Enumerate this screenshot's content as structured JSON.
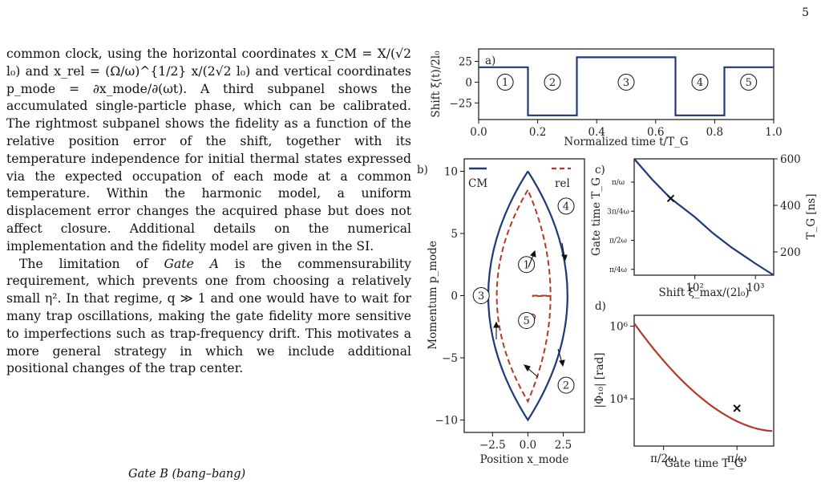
{
  "page_number": "5",
  "body_text": {
    "p1": [
      "common clock, using the horizontal coordinates x_CM = X/(√2 l₀) and x_rel = (Ω/ω)^{1/2} x/(2√2 l₀) and vertical coordinates p_mode = ∂x_mode/∂(ωt). A third subpanel shows the accumulated single-particle phase, which can be calibrated. The rightmost subpanel shows the fidelity as a function of the relative position error of the shift, together with its temperature independence for initial thermal states expressed via the expected occupation of each mode at a common temperature. Within the harmonic model, a uniform displacement error changes the acquired phase but does not affect closure. Additional details on the numerical implementation and the fidelity model are given in the SI."
    ],
    "p2_pre": "The limitation of ",
    "p2_em": "Gate A",
    "p2_post": " is the commensurability requirement, which prevents one from choosing a relatively small η². In that regime, q ≫ 1 and one would have to wait for many trap oscillations, making the gate fidelity more sensitive to imperfections such as trap-frequency drift. This motivates a more general strategy in which we include additional positional changes of the trap center.",
    "section_heading": "Gate B (bang–bang)"
  },
  "figure": {
    "panel_labels": {
      "a": "a)",
      "b": "b)",
      "c": "c)",
      "d": "d)"
    },
    "segment_markers": [
      "1",
      "2",
      "3",
      "4",
      "5"
    ],
    "a": {
      "ylabel": "Shift ξ(t)/2l₀",
      "xlabel": "Normalized time t/T_G",
      "xticks": [
        "0.0",
        "0.2",
        "0.4",
        "0.6",
        "0.8",
        "1.0"
      ],
      "yticks": [
        "25",
        "0",
        "−25"
      ]
    },
    "b": {
      "ylabel": "Momentum p_mode",
      "xlabel": "Position x_mode",
      "xticks": [
        "−2.5",
        "0.0",
        "2.5"
      ],
      "yticks": [
        "10",
        "5",
        "0",
        "−5",
        "−10"
      ],
      "legend": [
        "CM",
        "rel"
      ]
    },
    "c": {
      "ylabel_left": "Gate time T_G",
      "ylabel_right": "T_G [ns]",
      "xlabel": "Shift ξ_max/(2l₀)",
      "xticks": [
        "10²",
        "10³"
      ],
      "yticks_right": [
        "600",
        "400",
        "200"
      ],
      "yticks_left": [
        "π/ω",
        "3π/4ω",
        "π/2ω",
        "π/4ω"
      ]
    },
    "d": {
      "ylabel": "|Φ₁₀| [rad]",
      "xlabel": "Gate time T_G",
      "xticks": [
        "π/2ω",
        "π/ω"
      ],
      "yticks": [
        "10⁶",
        "10⁴"
      ]
    }
  },
  "chart_data": [
    {
      "type": "line",
      "panel": "a",
      "xlabel": "Normalized time t/T_G",
      "ylabel": "Shift ξ(t)/2l₀",
      "xlim": [
        0,
        1
      ],
      "ylim": [
        -45,
        40
      ],
      "series": [
        {
          "x": [
            0,
            0.167,
            0.167,
            0.333,
            0.333,
            0.667,
            0.667,
            0.833,
            0.833,
            1.0
          ],
          "y": [
            18,
            18,
            -40,
            -40,
            30,
            30,
            -40,
            -40,
            18,
            18
          ]
        }
      ]
    },
    {
      "type": "line",
      "panel": "b",
      "xlabel": "Position x_mode",
      "ylabel": "Momentum p_mode",
      "xlim": [
        -4.5,
        4.0
      ],
      "ylim": [
        -11,
        11
      ],
      "series": [
        {
          "name": "CM",
          "x": [
            0,
            -2.8,
            0,
            2.8,
            0
          ],
          "y": [
            10,
            0,
            -10,
            0,
            10
          ]
        },
        {
          "name": "rel",
          "x": [
            0,
            -2.2,
            0,
            1.6,
            0
          ],
          "y": [
            8.5,
            0,
            -8.5,
            0,
            8.5
          ]
        }
      ]
    },
    {
      "type": "line",
      "panel": "c",
      "xlabel": "Shift ξ_max/(2l₀)",
      "ylabel": "T_G [ns]",
      "xscale": "log",
      "xlim": [
        10,
        2000
      ],
      "ylim": [
        100,
        600
      ],
      "series": [
        {
          "x": [
            10,
            20,
            40,
            100,
            200,
            400,
            1000,
            2000
          ],
          "y": [
            600,
            510,
            430,
            350,
            280,
            220,
            150,
            100
          ]
        }
      ],
      "markers": [
        {
          "x": 40,
          "y": 430
        }
      ]
    },
    {
      "type": "line",
      "panel": "d",
      "xlabel": "Gate time T_G",
      "ylabel": "|Φ₁₀| [rad]",
      "yscale": "log",
      "ylim": [
        500,
        2000000
      ],
      "series": [
        {
          "x": [
            0.3,
            0.5,
            0.75,
            1.0,
            1.25
          ],
          "y": [
            1200000,
            120000,
            25000,
            5500,
            1300
          ]
        }
      ],
      "markers": [
        {
          "x": 1.0,
          "y": 5500
        }
      ]
    }
  ]
}
